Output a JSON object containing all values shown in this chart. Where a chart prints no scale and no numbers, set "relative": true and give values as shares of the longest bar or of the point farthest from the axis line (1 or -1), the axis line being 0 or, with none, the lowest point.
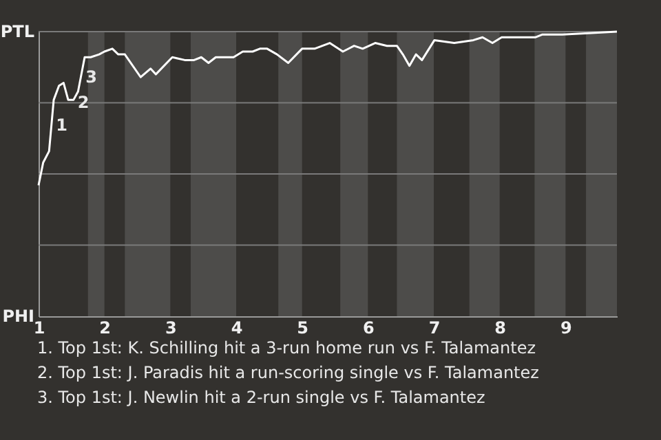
{
  "chart_data": {
    "type": "line",
    "relative": true,
    "x": [
      1,
      1.07,
      1.16,
      1.23,
      1.31,
      1.38,
      1.45,
      1.53,
      1.6,
      1.7,
      1.79,
      1.92,
      2,
      2.12,
      2.21,
      2.31,
      2.55,
      2.7,
      2.78,
      3.03,
      3.22,
      3.36,
      3.47,
      3.58,
      3.69,
      3.96,
      4.1,
      4.25,
      4.36,
      4.47,
      4.62,
      4.79,
      5,
      5.19,
      5.42,
      5.62,
      5.79,
      5.92,
      6.11,
      6.29,
      6.44,
      6.53,
      6.63,
      6.73,
      6.82,
      7.01,
      7.31,
      7.6,
      7.74,
      7.89,
      8.03,
      8.29,
      8.54,
      8.65,
      8.95,
      9.4,
      9.78
    ],
    "series": [
      {
        "color": "#ffffff",
        "values": [
          0.46,
          0.54,
          0.58,
          0.76,
          0.81,
          0.82,
          0.76,
          0.76,
          0.79,
          0.91,
          0.91,
          0.92,
          0.93,
          0.94,
          0.92,
          0.92,
          0.84,
          0.87,
          0.85,
          0.91,
          0.9,
          0.9,
          0.91,
          0.89,
          0.91,
          0.91,
          0.93,
          0.93,
          0.94,
          0.94,
          0.92,
          0.89,
          0.94,
          0.94,
          0.96,
          0.93,
          0.95,
          0.94,
          0.96,
          0.95,
          0.95,
          0.92,
          0.88,
          0.92,
          0.9,
          0.97,
          0.96,
          0.97,
          0.98,
          0.96,
          0.98,
          0.98,
          0.98,
          0.99,
          0.99,
          0.995,
          1.0
        ]
      }
    ],
    "xlim": [
      1,
      9.78
    ],
    "xticks": [
      1,
      2,
      3,
      4,
      5,
      6,
      7,
      8,
      9
    ],
    "ref_lines": [
      {
        "axis": "y",
        "value": 0.25,
        "color": "#7a7a7a"
      },
      {
        "axis": "y",
        "value": 0.5,
        "color": "#7a7a7a"
      },
      {
        "axis": "y",
        "value": 0.75,
        "color": "#7a7a7a"
      },
      {
        "axis": "y",
        "value": 1,
        "color": "#7a7a7a"
      }
    ],
    "bands": [
      {
        "axis": "x",
        "from": 1.75,
        "to": 2,
        "color": "#4d4c4a"
      },
      {
        "axis": "x",
        "from": 2.31,
        "to": 3,
        "color": "#4d4c4a"
      },
      {
        "axis": "x",
        "from": 3.31,
        "to": 4,
        "color": "#4d4c4a"
      },
      {
        "axis": "x",
        "from": 4.64,
        "to": 5,
        "color": "#4d4c4a"
      },
      {
        "axis": "x",
        "from": 5.58,
        "to": 6,
        "color": "#4d4c4a"
      },
      {
        "axis": "x",
        "from": 6.44,
        "to": 7,
        "color": "#4d4c4a"
      },
      {
        "axis": "x",
        "from": 7.54,
        "to": 8,
        "color": "#4d4c4a"
      },
      {
        "axis": "x",
        "from": 8.53,
        "to": 9,
        "color": "#4d4c4a"
      },
      {
        "axis": "x",
        "from": 9.31,
        "to": 9.78,
        "color": "#4d4c4a"
      }
    ],
    "annotations": [
      "PTL",
      "PHI",
      {
        "text": "1",
        "x": 1.2,
        "y": 0.68
      },
      {
        "text": "2",
        "x": 1.53,
        "y": 0.76
      },
      {
        "text": "3",
        "x": 1.65,
        "y": 0.85
      },
      "1. Top 1st: K. Schilling hit a 3-run home run vs F. Talamantez",
      "2. Top 1st: J. Paradis hit a run-scoring single vs F. Talamantez",
      "3. Top 1st: J. Newlin hit a 2-run single vs F. Talamantez"
    ]
  }
}
